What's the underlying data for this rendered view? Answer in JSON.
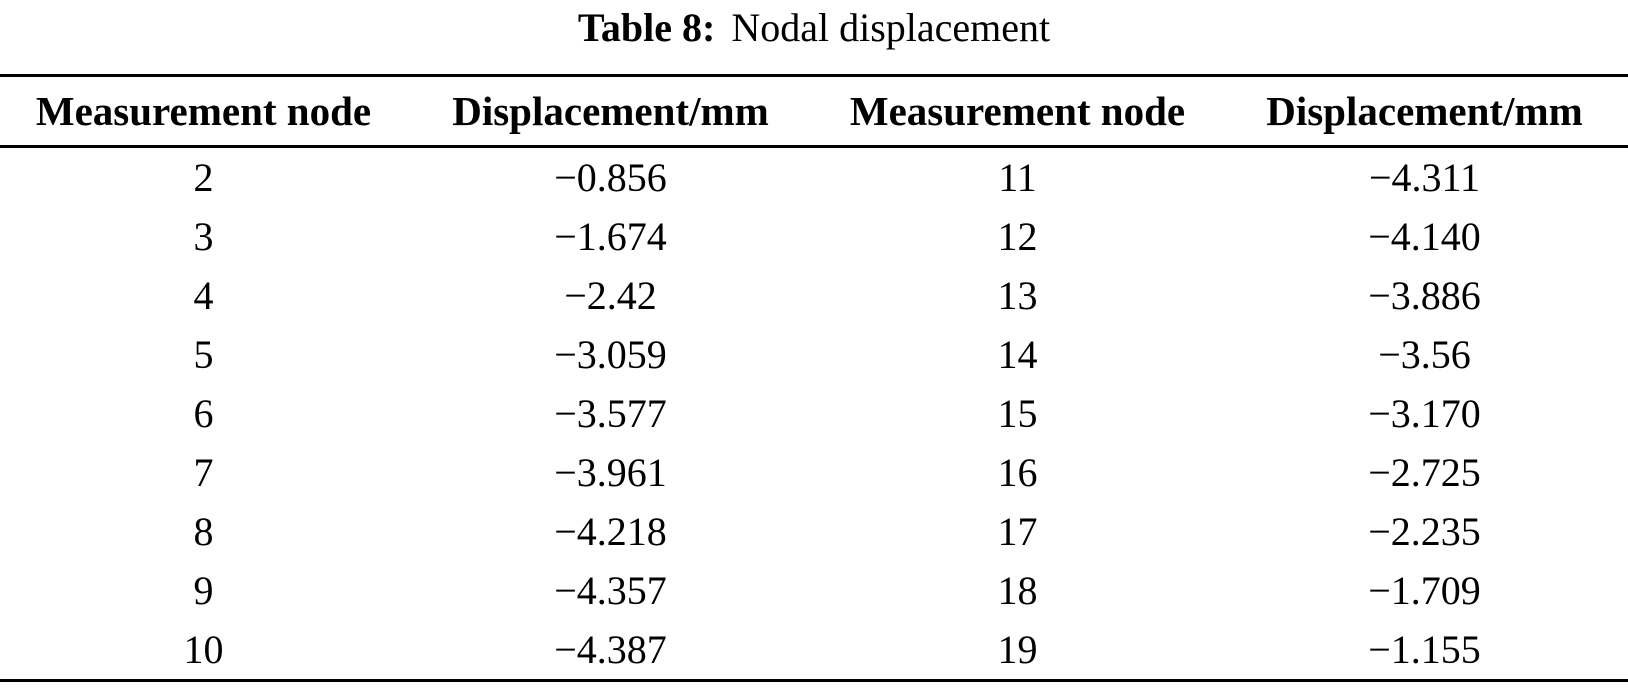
{
  "page": {
    "background": "#ffffff",
    "text_color": "#000000"
  },
  "caption": {
    "label": "Table 8:",
    "title": "Nodal displacement"
  },
  "table": {
    "headers": [
      "Measurement node",
      "Displacement/mm",
      "Measurement node",
      "Displacement/mm"
    ],
    "rows": [
      [
        "2",
        "−0.856",
        "11",
        "−4.311"
      ],
      [
        "3",
        "−1.674",
        "12",
        "−4.140"
      ],
      [
        "4",
        "−2.42",
        "13",
        "−3.886"
      ],
      [
        "5",
        "−3.059",
        "14",
        "−3.56"
      ],
      [
        "6",
        "−3.577",
        "15",
        "−3.170"
      ],
      [
        "7",
        "−3.961",
        "16",
        "−2.725"
      ],
      [
        "8",
        "−4.218",
        "17",
        "−2.235"
      ],
      [
        "9",
        "−4.357",
        "18",
        "−1.709"
      ],
      [
        "10",
        "−4.387",
        "19",
        "−1.155"
      ]
    ]
  },
  "chart_data": {
    "type": "table",
    "title": "Table 8: Nodal displacement",
    "columns": [
      "Measurement node",
      "Displacement/mm"
    ],
    "records": [
      {
        "node": 2,
        "displacement_mm": -0.856
      },
      {
        "node": 3,
        "displacement_mm": -1.674
      },
      {
        "node": 4,
        "displacement_mm": -2.42
      },
      {
        "node": 5,
        "displacement_mm": -3.059
      },
      {
        "node": 6,
        "displacement_mm": -3.577
      },
      {
        "node": 7,
        "displacement_mm": -3.961
      },
      {
        "node": 8,
        "displacement_mm": -4.218
      },
      {
        "node": 9,
        "displacement_mm": -4.357
      },
      {
        "node": 10,
        "displacement_mm": -4.387
      },
      {
        "node": 11,
        "displacement_mm": -4.311
      },
      {
        "node": 12,
        "displacement_mm": -4.14
      },
      {
        "node": 13,
        "displacement_mm": -3.886
      },
      {
        "node": 14,
        "displacement_mm": -3.56
      },
      {
        "node": 15,
        "displacement_mm": -3.17
      },
      {
        "node": 16,
        "displacement_mm": -2.725
      },
      {
        "node": 17,
        "displacement_mm": -2.235
      },
      {
        "node": 18,
        "displacement_mm": -1.709
      },
      {
        "node": 19,
        "displacement_mm": -1.155
      }
    ]
  }
}
